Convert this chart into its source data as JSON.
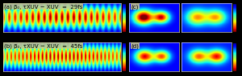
{
  "background_color": "#000000",
  "panel_a_label": "(a) β₀, τXUV − XUV  =  29fs",
  "panel_b_label": "(b) β₀, τXUV − XUV  =  45fs",
  "panel_c_label": "(c)",
  "panel_d_label": "(d)",
  "colormap": "jet",
  "label_fontsize": 5.0,
  "label_color": "#000000",
  "label_bg": "#cccc99"
}
